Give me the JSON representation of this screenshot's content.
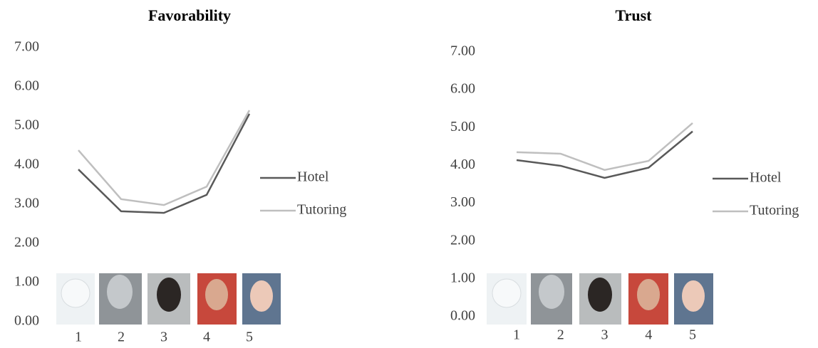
{
  "chart_data": [
    {
      "type": "line",
      "title": "Favorability",
      "categories": [
        "1",
        "2",
        "3",
        "4",
        "5"
      ],
      "series": [
        {
          "name": "Hotel",
          "color": "#595959",
          "values": [
            3.89,
            2.82,
            2.78,
            3.24,
            5.31
          ]
        },
        {
          "name": "Tutoring",
          "color": "#bfbfbf",
          "values": [
            4.38,
            3.13,
            2.98,
            3.45,
            5.4
          ]
        }
      ],
      "ylim": [
        0,
        7
      ],
      "yticks": [
        {
          "value": 0,
          "label": "0.00"
        },
        {
          "value": 1,
          "label": "1.00"
        },
        {
          "value": 2,
          "label": "2.00"
        },
        {
          "value": 3,
          "label": "3.00"
        },
        {
          "value": 4,
          "label": "4.00"
        },
        {
          "value": 5,
          "label": "5.00"
        },
        {
          "value": 6,
          "label": "6.00"
        },
        {
          "value": 7,
          "label": "7.00"
        }
      ],
      "grid": false,
      "legend": "right"
    },
    {
      "type": "line",
      "title": "Trust",
      "categories": [
        "1",
        "2",
        "3",
        "4",
        "5"
      ],
      "series": [
        {
          "name": "Hotel",
          "color": "#595959",
          "values": [
            4.14,
            3.99,
            3.67,
            3.94,
            4.9
          ]
        },
        {
          "name": "Tutoring",
          "color": "#bfbfbf",
          "values": [
            4.35,
            4.31,
            3.88,
            4.12,
            5.12
          ]
        }
      ],
      "ylim": [
        0,
        7
      ],
      "yticks": [
        {
          "value": 0,
          "label": "0.00"
        },
        {
          "value": 1,
          "label": "1.00"
        },
        {
          "value": 2,
          "label": "2.00"
        },
        {
          "value": 3,
          "label": "3.00"
        },
        {
          "value": 4,
          "label": "4.00"
        },
        {
          "value": 5,
          "label": "5.00"
        },
        {
          "value": 6,
          "label": "6.00"
        },
        {
          "value": 7,
          "label": "7.00"
        }
      ],
      "grid": false,
      "legend": "right"
    }
  ]
}
